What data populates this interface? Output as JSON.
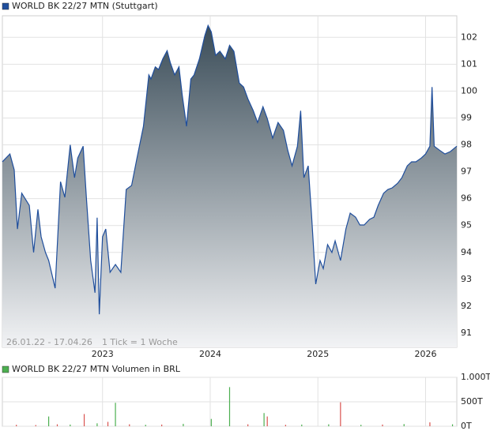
{
  "chart_data": [
    {
      "type": "area",
      "title": "WORLD BK 22/27 MTN (Stuttgart)",
      "color": "#1f4e9c",
      "period": "26.01.22 - 17.04.26",
      "note": "1 Tick = 1 Woche",
      "x": [
        2022.07,
        2022.14,
        2022.18,
        2022.21,
        2022.25,
        2022.32,
        2022.36,
        2022.4,
        2022.43,
        2022.47,
        2022.5,
        2022.56,
        2022.61,
        2022.65,
        2022.7,
        2022.74,
        2022.77,
        2022.82,
        2022.85,
        2022.89,
        2022.93,
        2022.95,
        2022.97,
        2023.0,
        2023.03,
        2023.07,
        2023.12,
        2023.17,
        2023.22,
        2023.27,
        2023.32,
        2023.38,
        2023.43,
        2023.45,
        2023.49,
        2023.52,
        2023.56,
        2023.6,
        2023.63,
        2023.67,
        2023.71,
        2023.74,
        2023.78,
        2023.82,
        2023.85,
        2023.9,
        2023.95,
        2023.98,
        2024.01,
        2024.05,
        2024.09,
        2024.14,
        2024.18,
        2024.22,
        2024.27,
        2024.31,
        2024.35,
        2024.4,
        2024.44,
        2024.49,
        2024.53,
        2024.58,
        2024.63,
        2024.68,
        2024.72,
        2024.76,
        2024.81,
        2024.84,
        2024.87,
        2024.91,
        2024.94,
        2024.98,
        2025.02,
        2025.05,
        2025.09,
        2025.13,
        2025.16,
        2025.21,
        2025.26,
        2025.3,
        2025.35,
        2025.39,
        2025.43,
        2025.48,
        2025.52,
        2025.56,
        2025.61,
        2025.65,
        2025.69,
        2025.74,
        2025.78,
        2025.83,
        2025.87,
        2025.91,
        2025.96,
        2026.0,
        2026.04,
        2026.06,
        2026.08,
        2026.13,
        2026.18,
        2026.23,
        2026.29
      ],
      "values": [
        97.37,
        97.66,
        97.07,
        94.87,
        96.2,
        95.75,
        94.0,
        95.6,
        94.58,
        94.0,
        93.7,
        92.67,
        96.63,
        96.05,
        98.0,
        96.78,
        97.51,
        97.95,
        96.05,
        93.7,
        92.5,
        95.29,
        91.7,
        94.58,
        94.87,
        93.26,
        93.55,
        93.26,
        96.34,
        96.49,
        97.51,
        98.69,
        100.6,
        100.45,
        100.9,
        100.8,
        101.2,
        101.5,
        101.05,
        100.6,
        100.9,
        99.86,
        98.69,
        100.45,
        100.6,
        101.2,
        102.06,
        102.44,
        102.2,
        101.33,
        101.48,
        101.2,
        101.7,
        101.48,
        100.3,
        100.15,
        99.71,
        99.27,
        98.83,
        99.42,
        98.98,
        98.25,
        98.83,
        98.54,
        97.8,
        97.22,
        97.95,
        99.27,
        96.78,
        97.22,
        95.46,
        92.82,
        93.7,
        93.4,
        94.29,
        94.0,
        94.43,
        93.7,
        94.87,
        95.46,
        95.31,
        95.02,
        95.02,
        95.23,
        95.31,
        95.75,
        96.2,
        96.34,
        96.4,
        96.57,
        96.78,
        97.22,
        97.37,
        97.37,
        97.51,
        97.66,
        97.95,
        100.15,
        97.95,
        97.8,
        97.66,
        97.75,
        97.95
      ],
      "xlim": [
        2022.07,
        2026.29
      ],
      "xticks": [
        2023,
        2024,
        2025,
        2026
      ],
      "ylim": [
        90.47,
        102.8
      ],
      "yticks": [
        91,
        92,
        93,
        94,
        95,
        96,
        97,
        98,
        99,
        100,
        101,
        102
      ],
      "grid": true
    },
    {
      "type": "bar",
      "title": "WORLD BK 22/27 MTN Volumen in BRL",
      "color": "#4caf50",
      "x": [
        2022.2,
        2022.38,
        2022.5,
        2022.58,
        2022.7,
        2022.83,
        2022.95,
        2023.05,
        2023.12,
        2023.25,
        2023.4,
        2023.55,
        2023.75,
        2024.01,
        2024.18,
        2024.35,
        2024.5,
        2024.53,
        2024.7,
        2024.85,
        2025.1,
        2025.21,
        2025.4,
        2025.6,
        2025.8,
        2026.04,
        2026.25
      ],
      "values": [
        30,
        25,
        200,
        40,
        35,
        250,
        60,
        90,
        480,
        40,
        30,
        35,
        50,
        150,
        800,
        40,
        270,
        200,
        30,
        35,
        40,
        490,
        30,
        35,
        45,
        80,
        40
      ],
      "colors": [
        "#d9534f",
        "#d9534f",
        "#4caf50",
        "#d9534f",
        "#4caf50",
        "#d9534f",
        "#4caf50",
        "#d9534f",
        "#4caf50",
        "#d9534f",
        "#4caf50",
        "#d9534f",
        "#4caf50",
        "#4caf50",
        "#4caf50",
        "#d9534f",
        "#4caf50",
        "#d9534f",
        "#d9534f",
        "#4caf50",
        "#4caf50",
        "#d9534f",
        "#4caf50",
        "#d9534f",
        "#4caf50",
        "#d9534f",
        "#4caf50"
      ],
      "xlim": [
        2022.07,
        2026.29
      ],
      "xticks": [
        2023,
        2024,
        2025,
        2026
      ],
      "ylim": [
        0,
        1000
      ],
      "yticks": [
        {
          "value": 1000,
          "label": "1.000T"
        },
        {
          "value": 500,
          "label": "500T"
        },
        {
          "value": 0,
          "label": "0T"
        }
      ],
      "grid": true
    }
  ]
}
